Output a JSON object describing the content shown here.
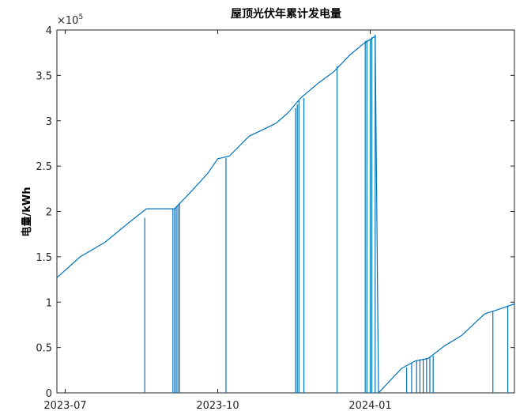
{
  "chart_data": {
    "type": "line",
    "title": "屋顶光伏年累计发电量",
    "xlabel": "",
    "ylabel": "电量/kWh",
    "y_exponent_base": "×10",
    "y_exponent_power": "5",
    "ylim": [
      0,
      400000
    ],
    "y_ticks": [
      {
        "value": 0,
        "label": "0"
      },
      {
        "value": 50000,
        "label": "0.5"
      },
      {
        "value": 100000,
        "label": "1"
      },
      {
        "value": 150000,
        "label": "1.5"
      },
      {
        "value": 200000,
        "label": "2"
      },
      {
        "value": 250000,
        "label": "2.5"
      },
      {
        "value": 300000,
        "label": "3"
      },
      {
        "value": 350000,
        "label": "3.5"
      },
      {
        "value": 400000,
        "label": "4"
      }
    ],
    "xlim": [
      "2023-06-26",
      "2024-03-28"
    ],
    "x_ticks": [
      {
        "date": "2023-07-01",
        "label": "2023-07"
      },
      {
        "date": "2023-10-01",
        "label": "2023-10"
      },
      {
        "date": "2024-01-01",
        "label": "2024-01"
      }
    ],
    "grid": false,
    "series_color": "#0072BD",
    "series": [
      {
        "points": [
          [
            "2023-06-26",
            127000
          ],
          [
            "2023-07-10",
            150000
          ],
          [
            "2023-07-25",
            166000
          ],
          [
            "2023-08-10",
            190000
          ],
          [
            "2023-08-19",
            203000
          ],
          [
            "2023-09-05",
            203000
          ],
          [
            "2023-09-15",
            222000
          ],
          [
            "2023-09-25",
            242000
          ],
          [
            "2023-10-01",
            258000
          ],
          [
            "2023-10-08",
            261000
          ],
          [
            "2023-10-20",
            283000
          ],
          [
            "2023-11-05",
            297000
          ],
          [
            "2023-11-12",
            308000
          ],
          [
            "2023-11-20",
            325000
          ],
          [
            "2023-12-01",
            342000
          ],
          [
            "2023-12-10",
            354000
          ],
          [
            "2023-12-20",
            373000
          ],
          [
            "2023-12-28",
            385000
          ],
          [
            "2024-01-04",
            393000
          ],
          [
            "2024-01-06",
            0
          ],
          [
            "2024-01-20",
            27000
          ],
          [
            "2024-01-28",
            35000
          ],
          [
            "2024-02-05",
            38000
          ],
          [
            "2024-02-15",
            52000
          ],
          [
            "2024-02-25",
            63000
          ],
          [
            "2024-03-10",
            87000
          ],
          [
            "2024-03-20",
            93000
          ],
          [
            "2024-03-28",
            98000
          ]
        ],
        "drops": [
          [
            "2023-08-18",
            193000
          ],
          [
            "2023-09-04",
            203000
          ],
          [
            "2023-09-05",
            203000
          ],
          [
            "2023-09-06",
            205000
          ],
          [
            "2023-09-07",
            207000
          ],
          [
            "2023-09-08",
            209000
          ],
          [
            "2023-10-06",
            259000
          ],
          [
            "2023-11-17",
            314000
          ],
          [
            "2023-11-18",
            318000
          ],
          [
            "2023-11-19",
            322000
          ],
          [
            "2023-11-22",
            325000
          ],
          [
            "2023-12-12",
            360000
          ],
          [
            "2023-12-29",
            388000
          ],
          [
            "2023-12-30",
            389000
          ],
          [
            "2024-01-01",
            390000
          ],
          [
            "2024-01-02",
            392000
          ],
          [
            "2024-01-04",
            395000
          ],
          [
            "2024-01-23",
            28000
          ],
          [
            "2024-01-26",
            33000
          ],
          [
            "2024-01-29",
            36000
          ],
          [
            "2024-01-31",
            37000
          ],
          [
            "2024-02-02",
            37500
          ],
          [
            "2024-02-04",
            38000
          ],
          [
            "2024-02-06",
            39500
          ],
          [
            "2024-02-08",
            41000
          ],
          [
            "2024-03-15",
            90000
          ],
          [
            "2024-03-24",
            96000
          ]
        ]
      }
    ]
  }
}
